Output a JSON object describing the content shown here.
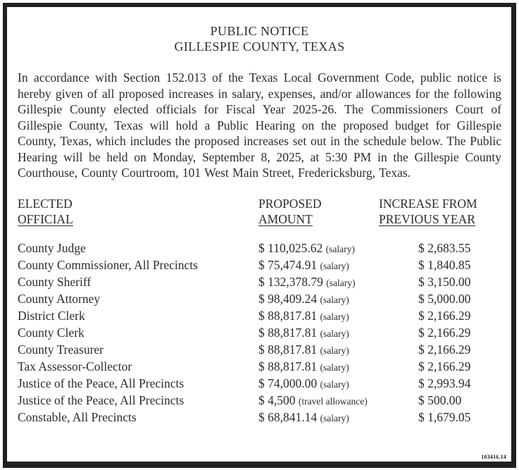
{
  "colors": {
    "background": "#ffffff",
    "border": "#231f20",
    "text": "#2e2b2b"
  },
  "notice": {
    "title_line1": "PUBLIC NOTICE",
    "title_line2": "GILLESPIE COUNTY, TEXAS",
    "body": "In accordance with Section 152.013 of the Texas Local Government Code, public notice is hereby given of all proposed increases in salary, expenses, and/or allowances for the following Gillespie County elected officials for Fiscal Year 2025-26. The Commissioners Court of Gillespie County, Texas will hold a Public Hearing on the proposed budget for Gillespie County, Texas, which includes the proposed increases set out in the schedule below. The Public Hearing will be held on Monday, September 8, 2025, at 5:30 PM in the Gillespie County Courthouse, County Courtroom, 101 West Main Street, Fredericksburg, Texas.",
    "document_id": "103416.14"
  },
  "table": {
    "headers": [
      {
        "line1": "ELECTED",
        "line2": "OFFICIAL"
      },
      {
        "line1": "PROPOSED",
        "line2": "AMOUNT"
      },
      {
        "line1": "INCREASE FROM",
        "line2": "PREVIOUS YEAR"
      }
    ],
    "rows": [
      {
        "official": "County Judge",
        "amount": "$ 110,025.62",
        "note": "(salary)",
        "increase": "$ 2,683.55"
      },
      {
        "official": "County Commissioner, All Precincts",
        "amount": "$ 75,474.91",
        "note": "(salary)",
        "increase": "$ 1,840.85"
      },
      {
        "official": "County Sheriff",
        "amount": "$ 132,378.79",
        "note": "(salary)",
        "increase": "$ 3,150.00"
      },
      {
        "official": "County Attorney",
        "amount": "$ 98,409.24",
        "note": "(salary)",
        "increase": "$ 5,000.00"
      },
      {
        "official": "District Clerk",
        "amount": "$ 88,817.81",
        "note": "(salary)",
        "increase": "$ 2,166.29"
      },
      {
        "official": "County Clerk",
        "amount": "$ 88,817.81",
        "note": "(salary)",
        "increase": "$ 2,166.29"
      },
      {
        "official": "County Treasurer",
        "amount": "$ 88,817.81",
        "note": "(salary)",
        "increase": "$ 2,166.29"
      },
      {
        "official": "Tax Assessor-Collector",
        "amount": "$ 88,817.81",
        "note": "(salary)",
        "increase": "$ 2,166.29"
      },
      {
        "official": "Justice of the Peace, All Precincts",
        "amount": "$ 74,000.00",
        "note": "(salary)",
        "increase": "$ 2,993.94"
      },
      {
        "official": "Justice of the Peace, All Precincts",
        "amount": "$ 4,500",
        "note": "(travel allowance)",
        "increase": "$ 500.00"
      },
      {
        "official": "Constable, All Precincts",
        "amount": "$ 68,841.14",
        "note": "(salary)",
        "increase": "$ 1,679.05"
      }
    ]
  }
}
